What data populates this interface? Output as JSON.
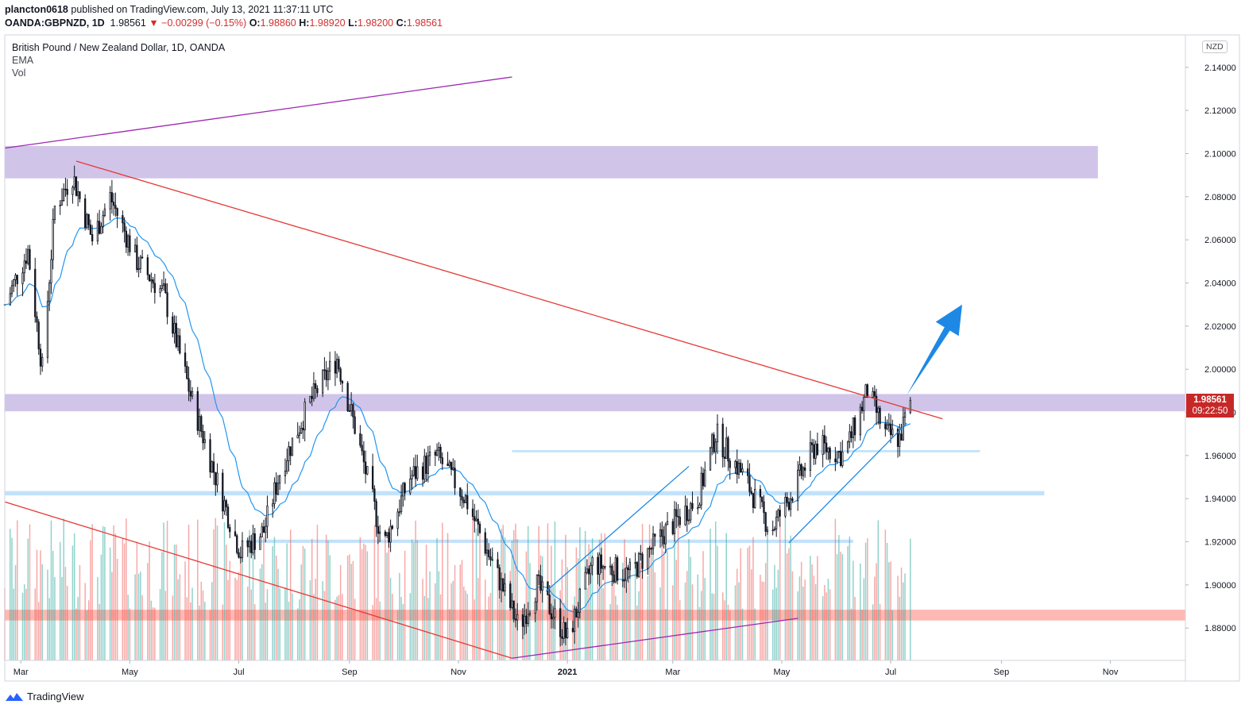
{
  "header": {
    "publisher": "plancton0618",
    "published_text": "published on TradingView.com, July 13, 2021 11:37:11 UTC",
    "symbol": "OANDA:GBPNZD, 1D",
    "last": "1.98561",
    "change": "▼ −0.00299 (−0.15%)",
    "o_label": "O:",
    "o_value": "1.98860",
    "h_label": "H:",
    "h_value": "1.98920",
    "l_label": "L:",
    "l_value": "1.98200",
    "c_label": "C:",
    "c_value": "1.98561"
  },
  "legend": {
    "title": "British Pound / New Zealand Dollar, 1D, OANDA",
    "indicators": [
      "EMA",
      "Vol"
    ]
  },
  "currency_label": "NZD",
  "price_tag": {
    "price": "1.98561",
    "countdown": "09:22:50"
  },
  "footer": {
    "brand": "TradingView",
    "logo_icon": "tradingview-logo-icon"
  },
  "colors": {
    "up": "#26a69a",
    "down": "#ef5350",
    "candle_body": "#131722",
    "ema": "#2196f3",
    "zone_purple": "#b39ddb",
    "zone_blue": "#90caf9",
    "zone_red": "#ff8a80",
    "trend_red": "#e53935",
    "trend_purple": "#9c27b0",
    "trend_blue": "#1e88e5",
    "arrow": "#1e88e5"
  },
  "chart_data": {
    "type": "candlestick",
    "ylim": [
      1.865,
      2.155
    ],
    "yticks": [
      "2.14000",
      "2.12000",
      "2.10000",
      "2.08000",
      "2.06000",
      "2.04000",
      "2.02000",
      "2.00000",
      "1.98000",
      "1.96000",
      "1.94000",
      "1.92000",
      "1.90000",
      "1.88000"
    ],
    "x_range": [
      "2020-02-21",
      "2021-12-13"
    ],
    "xticks": [
      {
        "label": "Mar",
        "date": "2020-03-01"
      },
      {
        "label": "May",
        "date": "2020-05-01"
      },
      {
        "label": "Jul",
        "date": "2020-07-01"
      },
      {
        "label": "Sep",
        "date": "2020-09-01"
      },
      {
        "label": "Nov",
        "date": "2020-11-01"
      },
      {
        "label": "2021",
        "date": "2021-01-01"
      },
      {
        "label": "Mar",
        "date": "2021-03-01"
      },
      {
        "label": "May",
        "date": "2021-05-01"
      },
      {
        "label": "Jul",
        "date": "2021-07-01"
      },
      {
        "label": "Sep",
        "date": "2021-09-01"
      },
      {
        "label": "Nov",
        "date": "2021-11-01"
      }
    ],
    "anchors": [
      {
        "date": "2020-02-21",
        "price": 2.03
      },
      {
        "date": "2020-03-05",
        "price": 2.055
      },
      {
        "date": "2020-03-13",
        "price": 2.0
      },
      {
        "date": "2020-03-20",
        "price": 2.075
      },
      {
        "date": "2020-03-30",
        "price": 2.09
      },
      {
        "date": "2020-04-10",
        "price": 2.06
      },
      {
        "date": "2020-04-20",
        "price": 2.08
      },
      {
        "date": "2020-05-05",
        "price": 2.05
      },
      {
        "date": "2020-05-20",
        "price": 2.035
      },
      {
        "date": "2020-06-05",
        "price": 1.985
      },
      {
        "date": "2020-06-20",
        "price": 1.945
      },
      {
        "date": "2020-07-02",
        "price": 1.915
      },
      {
        "date": "2020-07-15",
        "price": 1.925
      },
      {
        "date": "2020-07-25",
        "price": 1.955
      },
      {
        "date": "2020-08-10",
        "price": 1.985
      },
      {
        "date": "2020-08-25",
        "price": 2.005
      },
      {
        "date": "2020-09-05",
        "price": 1.97
      },
      {
        "date": "2020-09-20",
        "price": 1.918
      },
      {
        "date": "2020-10-05",
        "price": 1.95
      },
      {
        "date": "2020-10-20",
        "price": 1.96
      },
      {
        "date": "2020-11-05",
        "price": 1.94
      },
      {
        "date": "2020-11-20",
        "price": 1.91
      },
      {
        "date": "2020-12-05",
        "price": 1.88
      },
      {
        "date": "2020-12-15",
        "price": 1.9
      },
      {
        "date": "2021-01-01",
        "price": 1.875
      },
      {
        "date": "2021-01-15",
        "price": 1.91
      },
      {
        "date": "2021-02-05",
        "price": 1.905
      },
      {
        "date": "2021-02-25",
        "price": 1.925
      },
      {
        "date": "2021-03-15",
        "price": 1.94
      },
      {
        "date": "2021-03-25",
        "price": 1.97
      },
      {
        "date": "2021-04-10",
        "price": 1.95
      },
      {
        "date": "2021-04-25",
        "price": 1.925
      },
      {
        "date": "2021-05-05",
        "price": 1.94
      },
      {
        "date": "2021-05-20",
        "price": 1.965
      },
      {
        "date": "2021-06-05",
        "price": 1.96
      },
      {
        "date": "2021-06-18",
        "price": 1.99
      },
      {
        "date": "2021-06-28",
        "price": 1.97
      },
      {
        "date": "2021-07-06",
        "price": 1.968
      },
      {
        "date": "2021-07-12",
        "price": 1.9856
      }
    ],
    "last_price": 1.98561,
    "zones": [
      {
        "color": "purple",
        "from": "2020-02-21",
        "to": "2021-10-25",
        "price_low": 2.0885,
        "price_high": 2.1035
      },
      {
        "color": "purple",
        "from": "2020-02-21",
        "to": "2021-12-13",
        "price_low": 1.9805,
        "price_high": 1.9885
      },
      {
        "color": "blue",
        "from": "2020-12-01",
        "to": "2021-08-20",
        "price_low": 1.9615,
        "price_high": 1.9625
      },
      {
        "color": "blue",
        "from": "2020-02-21",
        "to": "2021-09-25",
        "price_low": 1.9415,
        "price_high": 1.9435
      },
      {
        "color": "blue",
        "from": "2020-07-05",
        "to": "2021-06-10",
        "price_low": 1.9195,
        "price_high": 1.921
      },
      {
        "color": "red",
        "from": "2020-02-21",
        "to": "2021-12-13",
        "price_low": 1.8835,
        "price_high": 1.8885
      }
    ],
    "trendlines": [
      {
        "color": "purple",
        "from": [
          "2020-02-21",
          2.1025
        ],
        "to": [
          "2020-12-01",
          2.1355
        ]
      },
      {
        "color": "red",
        "from": [
          "2020-04-01",
          2.0965
        ],
        "to": [
          "2021-07-30",
          1.977
        ]
      },
      {
        "color": "red",
        "from": [
          "2020-02-21",
          1.9385
        ],
        "to": [
          "2020-12-01",
          1.866
        ]
      },
      {
        "color": "purple",
        "from": [
          "2020-12-01",
          1.866
        ],
        "to": [
          "2021-05-10",
          1.8845
        ]
      },
      {
        "color": "blue",
        "from": [
          "2020-12-20",
          1.897
        ],
        "to": [
          "2021-03-10",
          1.955
        ]
      },
      {
        "color": "blue",
        "from": [
          "2021-05-05",
          1.9195
        ],
        "to": [
          "2021-07-10",
          1.975
        ]
      }
    ],
    "arrow": {
      "from": [
        "2021-07-10",
        1.988
      ],
      "to": [
        "2021-08-10",
        2.03
      ]
    }
  }
}
